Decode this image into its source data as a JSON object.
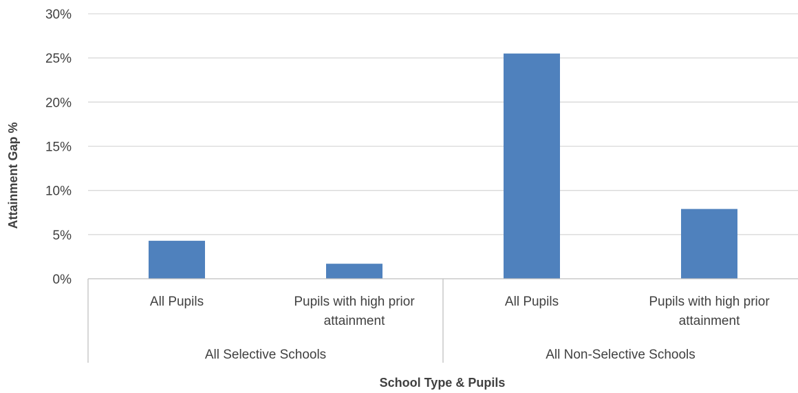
{
  "chart_data": {
    "type": "bar",
    "title": "",
    "xlabel": "School Type & Pupils",
    "ylabel": "Attainment Gap %",
    "ylim": [
      0,
      30
    ],
    "yticks": [
      "0%",
      "5%",
      "10%",
      "15%",
      "20%",
      "25%",
      "30%"
    ],
    "grid": true,
    "groups": [
      {
        "label": "All Selective Schools",
        "categories": [
          {
            "label": [
              "All Pupils"
            ],
            "value": 4.3
          },
          {
            "label": [
              "Pupils with high prior",
              "attainment"
            ],
            "value": 1.7
          }
        ]
      },
      {
        "label": "All Non-Selective Schools",
        "categories": [
          {
            "label": [
              "All Pupils"
            ],
            "value": 25.5
          },
          {
            "label": [
              "Pupils with high prior",
              "attainment"
            ],
            "value": 7.9
          }
        ]
      }
    ],
    "colors": {
      "bar": "#4f81bd",
      "grid": "#d9d9d9",
      "axis": "#bfbfbf",
      "text": "#404040"
    }
  }
}
